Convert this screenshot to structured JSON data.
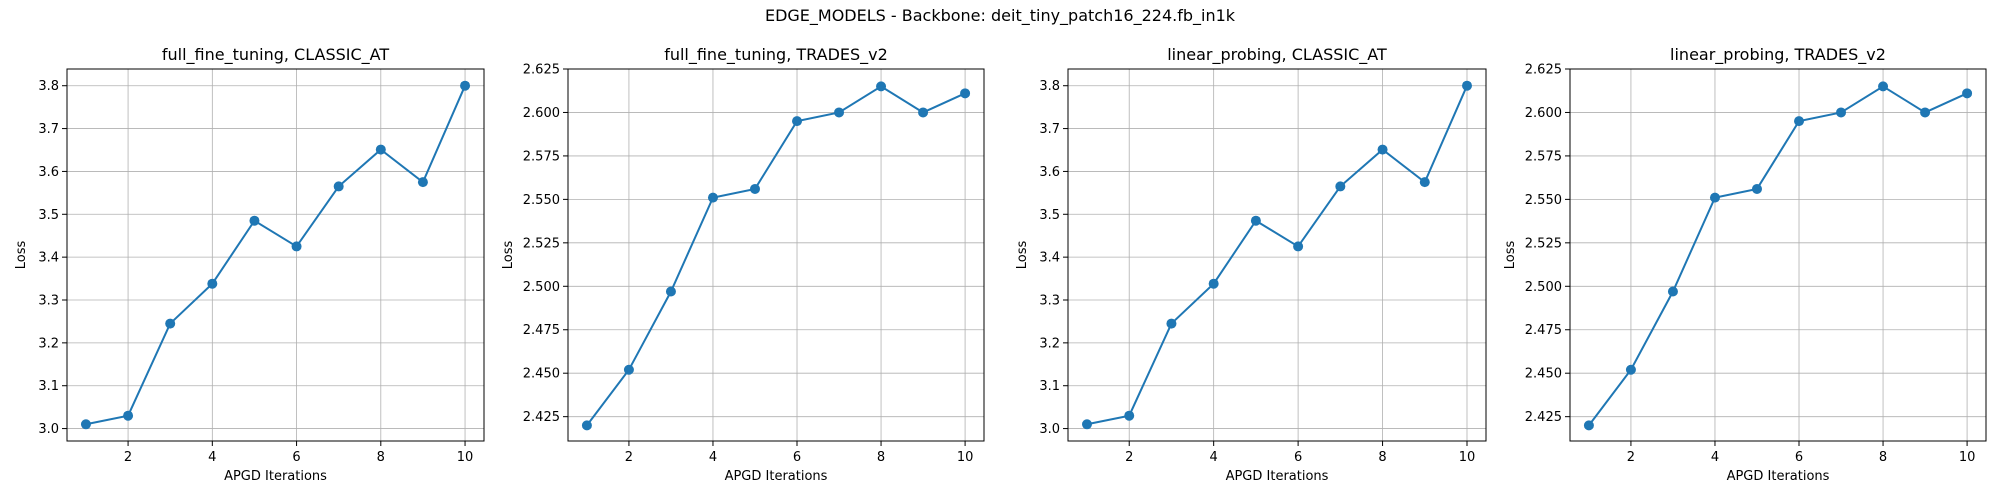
{
  "suptitle": "EDGE_MODELS - Backbone: deit_tiny_patch16_224.fb_in1k",
  "chart_data": [
    {
      "type": "line",
      "title": "full_fine_tuning, CLASSIC_AT",
      "xlabel": "APGD Iterations",
      "ylabel": "Loss",
      "x": [
        1,
        2,
        3,
        4,
        5,
        6,
        7,
        8,
        9,
        10
      ],
      "series": [
        {
          "values": [
            3.01,
            3.03,
            3.245,
            3.338,
            3.485,
            3.425,
            3.565,
            3.651,
            3.575,
            3.8
          ]
        }
      ],
      "xticks": [
        2,
        4,
        6,
        8,
        10
      ],
      "xtick_labels": [
        "2",
        "4",
        "6",
        "8",
        "10"
      ],
      "yticks": [
        3.0,
        3.1,
        3.2,
        3.3,
        3.4,
        3.5,
        3.6,
        3.7,
        3.8
      ],
      "ytick_labels": [
        "3.0",
        "3.1",
        "3.2",
        "3.3",
        "3.4",
        "3.5",
        "3.6",
        "3.7",
        "3.8"
      ],
      "xlim": [
        0.55,
        10.45
      ],
      "ylim": [
        2.971,
        3.839
      ],
      "grid": true,
      "color": "#1f77b4"
    },
    {
      "type": "line",
      "title": "full_fine_tuning, TRADES_v2",
      "xlabel": "APGD Iterations",
      "ylabel": "Loss",
      "x": [
        1,
        2,
        3,
        4,
        5,
        6,
        7,
        8,
        9,
        10
      ],
      "series": [
        {
          "values": [
            2.42,
            2.452,
            2.497,
            2.551,
            2.556,
            2.595,
            2.6,
            2.615,
            2.6,
            2.611
          ]
        }
      ],
      "xticks": [
        2,
        4,
        6,
        8,
        10
      ],
      "xtick_labels": [
        "2",
        "4",
        "6",
        "8",
        "10"
      ],
      "yticks": [
        2.425,
        2.45,
        2.475,
        2.5,
        2.525,
        2.55,
        2.575,
        2.6,
        2.625
      ],
      "ytick_labels": [
        "2.425",
        "2.450",
        "2.475",
        "2.500",
        "2.525",
        "2.550",
        "2.575",
        "2.600",
        "2.625"
      ],
      "xlim": [
        0.55,
        10.45
      ],
      "ylim": [
        2.411,
        2.625
      ],
      "grid": true,
      "color": "#1f77b4"
    },
    {
      "type": "line",
      "title": "linear_probing, CLASSIC_AT",
      "xlabel": "APGD Iterations",
      "ylabel": "Loss",
      "x": [
        1,
        2,
        3,
        4,
        5,
        6,
        7,
        8,
        9,
        10
      ],
      "series": [
        {
          "values": [
            3.01,
            3.03,
            3.245,
            3.338,
            3.485,
            3.425,
            3.565,
            3.651,
            3.575,
            3.8
          ]
        }
      ],
      "xticks": [
        2,
        4,
        6,
        8,
        10
      ],
      "xtick_labels": [
        "2",
        "4",
        "6",
        "8",
        "10"
      ],
      "yticks": [
        3.0,
        3.1,
        3.2,
        3.3,
        3.4,
        3.5,
        3.6,
        3.7,
        3.8
      ],
      "ytick_labels": [
        "3.0",
        "3.1",
        "3.2",
        "3.3",
        "3.4",
        "3.5",
        "3.6",
        "3.7",
        "3.8"
      ],
      "xlim": [
        0.55,
        10.45
      ],
      "ylim": [
        2.971,
        3.839
      ],
      "grid": true,
      "color": "#1f77b4"
    },
    {
      "type": "line",
      "title": "linear_probing, TRADES_v2",
      "xlabel": "APGD Iterations",
      "ylabel": "Loss",
      "x": [
        1,
        2,
        3,
        4,
        5,
        6,
        7,
        8,
        9,
        10
      ],
      "series": [
        {
          "values": [
            2.42,
            2.452,
            2.497,
            2.551,
            2.556,
            2.595,
            2.6,
            2.615,
            2.6,
            2.611
          ]
        }
      ],
      "xticks": [
        2,
        4,
        6,
        8,
        10
      ],
      "xtick_labels": [
        "2",
        "4",
        "6",
        "8",
        "10"
      ],
      "yticks": [
        2.425,
        2.45,
        2.475,
        2.5,
        2.525,
        2.55,
        2.575,
        2.6,
        2.625
      ],
      "ytick_labels": [
        "2.425",
        "2.450",
        "2.475",
        "2.500",
        "2.525",
        "2.550",
        "2.575",
        "2.600",
        "2.625"
      ],
      "xlim": [
        0.55,
        10.45
      ],
      "ylim": [
        2.411,
        2.625
      ],
      "grid": true,
      "color": "#1f77b4"
    }
  ]
}
